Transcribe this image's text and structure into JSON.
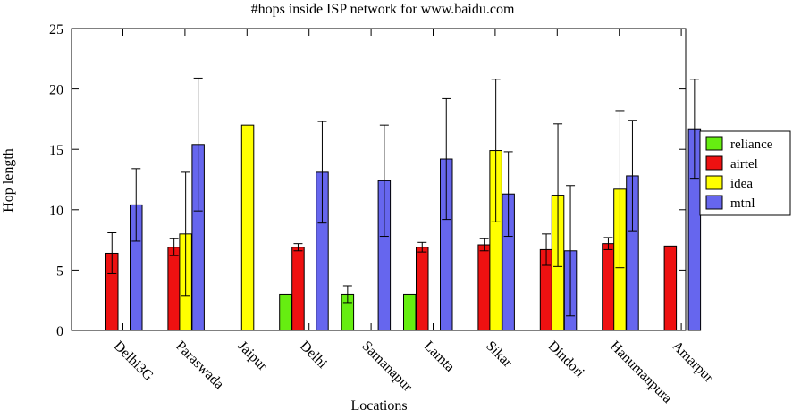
{
  "chart_data": {
    "type": "bar",
    "title": "#hops inside ISP network for www.baidu.com",
    "xlabel": "Locations",
    "ylabel": "Hop length",
    "ylim": [
      0,
      25
    ],
    "yticks": [
      0,
      5,
      10,
      15,
      20,
      25
    ],
    "categories": [
      "Delhi3G",
      "Paraswada",
      "Jaipur",
      "Delhi",
      "Samanapur",
      "Lamta",
      "Sikar",
      "Dindori",
      "Hanumanpura",
      "Amarpur"
    ],
    "grid": false,
    "legend_position": "right",
    "series": [
      {
        "name": "reliance",
        "color": "#66ee11",
        "values": [
          null,
          null,
          null,
          3,
          3,
          3,
          null,
          null,
          null,
          null
        ],
        "errors": [
          null,
          null,
          null,
          null,
          0.7,
          null,
          null,
          null,
          null,
          null
        ]
      },
      {
        "name": "airtel",
        "color": "#ee1111",
        "values": [
          6.4,
          6.9,
          null,
          6.9,
          null,
          6.9,
          7.1,
          6.7,
          7.2,
          7.0
        ],
        "errors": [
          1.7,
          0.7,
          null,
          0.3,
          null,
          0.4,
          0.5,
          1.3,
          0.5,
          null
        ]
      },
      {
        "name": "idea",
        "color": "#ffff00",
        "values": [
          null,
          8.0,
          17.0,
          null,
          null,
          null,
          14.9,
          11.2,
          11.7,
          null
        ],
        "errors": [
          null,
          5.1,
          null,
          null,
          null,
          null,
          5.9,
          5.9,
          6.5,
          null
        ]
      },
      {
        "name": "mtnl",
        "color": "#6666ee",
        "values": [
          10.4,
          15.4,
          null,
          13.1,
          12.4,
          14.2,
          11.3,
          6.6,
          12.8,
          16.7
        ],
        "errors": [
          3.0,
          5.5,
          null,
          4.2,
          4.6,
          5.0,
          3.5,
          5.4,
          4.6,
          4.1
        ]
      }
    ]
  }
}
